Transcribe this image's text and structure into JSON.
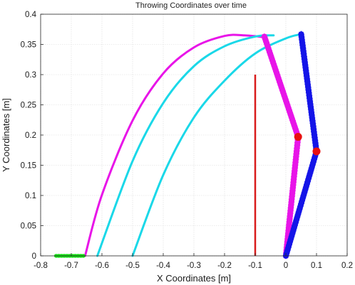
{
  "chart_data": {
    "type": "line",
    "title": "Throwing Coordinates over time",
    "xlabel": "X Coordinates [m]",
    "ylabel": "Y Coordinates [m]",
    "xlim": [
      -0.8,
      0.2
    ],
    "ylim": [
      0,
      0.4
    ],
    "grid": true,
    "x_ticks": [
      -0.8,
      -0.7,
      -0.6,
      -0.5,
      -0.4,
      -0.3,
      -0.2,
      -0.1,
      0,
      0.1,
      0.2
    ],
    "x_tick_labels": [
      "-0.8",
      "-0.7",
      "-0.6",
      "-0.5",
      "-0.4",
      "-0.3",
      "-0.2",
      "-0.1",
      "0",
      "0.1",
      "0.2"
    ],
    "y_ticks": [
      0,
      0.05,
      0.1,
      0.15,
      0.2,
      0.25,
      0.3,
      0.35,
      0.4
    ],
    "y_tick_labels": [
      "0",
      "0.05",
      "0.1",
      "0.15",
      "0.2",
      "0.25",
      "0.3",
      "0.35",
      "0.4"
    ],
    "series": [
      {
        "style": "arc",
        "color": "#e815e8",
        "width": 3,
        "points": [
          [
            -0.655,
            0
          ],
          [
            -0.6,
            0.101
          ],
          [
            -0.5,
            0.224
          ],
          [
            -0.4,
            0.302
          ],
          [
            -0.3,
            0.345
          ],
          [
            -0.2,
            0.364
          ],
          [
            -0.135,
            0.365
          ],
          [
            -0.07,
            0.362
          ]
        ]
      },
      {
        "style": "arc",
        "color": "#1ad8e8",
        "width": 3,
        "points": [
          [
            -0.615,
            0
          ],
          [
            -0.5,
            0.157
          ],
          [
            -0.4,
            0.253
          ],
          [
            -0.3,
            0.314
          ],
          [
            -0.2,
            0.347
          ],
          [
            -0.1,
            0.363
          ],
          [
            -0.04,
            0.365
          ]
        ]
      },
      {
        "style": "arc",
        "color": "#1ad8e8",
        "width": 3,
        "points": [
          [
            -0.5,
            0
          ],
          [
            -0.4,
            0.134
          ],
          [
            -0.3,
            0.229
          ],
          [
            -0.2,
            0.29
          ],
          [
            -0.1,
            0.335
          ],
          [
            0,
            0.36
          ],
          [
            0.05,
            0.367
          ]
        ]
      },
      {
        "style": "marker-band",
        "color": "#e815e8",
        "width": 8,
        "points": [
          [
            -0.07,
            0.363
          ],
          [
            0.04,
            0.197
          ],
          [
            0.0,
            0.0
          ]
        ]
      },
      {
        "style": "marker-band",
        "color": "#1515e8",
        "width": 8,
        "points": [
          [
            0.05,
            0.367
          ],
          [
            0.1,
            0.173
          ],
          [
            0.0,
            0.0
          ]
        ]
      },
      {
        "style": "line",
        "color": "#d81b1b",
        "width": 2.5,
        "points": [
          [
            -0.1,
            0.0
          ],
          [
            -0.1,
            0.3
          ]
        ]
      },
      {
        "style": "marker-band",
        "color": "#18e018",
        "width": 5,
        "points": [
          [
            -0.75,
            0.0
          ],
          [
            -0.66,
            0.0
          ]
        ]
      }
    ],
    "joints": [
      {
        "x": 0.04,
        "y": 0.197,
        "color": "#e81010"
      },
      {
        "x": 0.1,
        "y": 0.173,
        "color": "#e81010"
      }
    ]
  }
}
